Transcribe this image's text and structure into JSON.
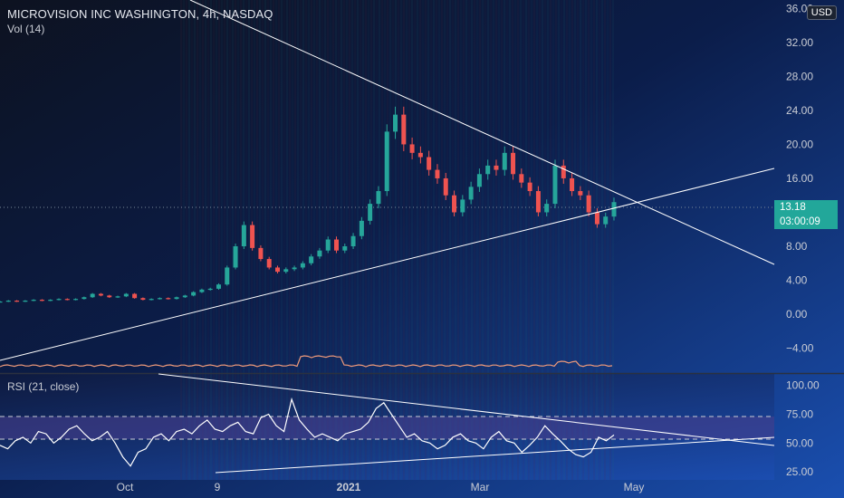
{
  "header": {
    "symbol_title": "MICROVISION INC WASHINGTON, 4h, NASDAQ",
    "volume_label": "Vol (14)",
    "currency": "USD"
  },
  "rsi_panel": {
    "label": "RSI (21, close)"
  },
  "price_tag": {
    "price": "13.18",
    "countdown": "03:00:09"
  },
  "colors": {
    "up": "#26a69a",
    "down": "#ef5350",
    "rsi_line": "#ffffff",
    "trendline": "#ffffff",
    "price_tag": "#22a79a",
    "rsi_band": "#4a3f8f"
  },
  "chart_data": [
    {
      "type": "line",
      "name": "price",
      "title": "MICROVISION INC WASHINGTON, 4h, NASDAQ",
      "ylim": [
        -6.5,
        37
      ],
      "yticks": [
        36,
        32,
        28,
        24,
        20,
        16,
        12,
        8,
        4,
        0,
        -4
      ],
      "ytick_labels": [
        "36.00",
        "32.00",
        "28.00",
        "24.00",
        "20.00",
        "16.00",
        "",
        "8.00",
        "4.00",
        "0.00",
        "−4.00"
      ],
      "xtick_labels": [
        "Oct",
        "9",
        "2021",
        "Mar",
        "May"
      ],
      "last_price": 13.18,
      "series": [
        {
          "values": [
            1.5,
            1.6,
            1.5,
            1.6,
            1.7,
            1.6,
            1.7,
            1.8,
            1.7,
            1.8,
            2.0,
            2.4,
            2.2,
            2.0,
            2.1,
            2.4,
            1.9,
            1.7,
            1.8,
            1.9,
            1.8,
            2.0,
            2.2,
            2.6,
            2.9,
            3.0,
            3.5,
            5.5,
            8.0,
            10.5,
            7.8,
            6.5,
            5.5,
            5.0,
            5.3,
            5.5,
            6.0,
            6.8,
            7.5,
            8.8,
            7.5,
            8.0,
            9.2,
            11.0,
            13.0,
            14.5,
            21.5,
            23.5,
            20.0,
            19.0,
            18.5,
            17.0,
            16.0,
            14.0,
            12.0,
            13.5,
            15.0,
            16.5,
            17.5,
            17.0,
            19.0,
            16.5,
            15.5,
            14.5,
            12.0,
            13.0,
            17.5,
            16.0,
            14.5,
            14.0,
            12.0,
            10.6,
            11.5,
            13.2
          ]
        }
      ]
    },
    {
      "type": "line",
      "name": "rsi",
      "title": "RSI (21, close)",
      "ylim": [
        18,
        110
      ],
      "yticks": [
        100,
        75,
        50,
        25
      ],
      "ytick_labels": [
        "100.00",
        "75.00",
        "50.00",
        "25.00"
      ],
      "band": [
        50,
        70
      ],
      "series": [
        {
          "values": [
            48,
            45,
            52,
            55,
            50,
            60,
            58,
            50,
            55,
            62,
            65,
            58,
            52,
            55,
            60,
            50,
            38,
            30,
            42,
            45,
            55,
            58,
            52,
            60,
            62,
            58,
            65,
            70,
            62,
            60,
            65,
            68,
            60,
            58,
            72,
            75,
            65,
            60,
            88,
            70,
            62,
            55,
            58,
            55,
            52,
            58,
            60,
            62,
            68,
            80,
            85,
            75,
            65,
            55,
            58,
            52,
            50,
            45,
            48,
            55,
            58,
            52,
            50,
            45,
            55,
            60,
            52,
            50,
            42,
            48,
            55,
            65,
            58,
            52,
            45,
            40,
            38,
            42,
            55,
            52,
            57
          ]
        }
      ]
    }
  ]
}
